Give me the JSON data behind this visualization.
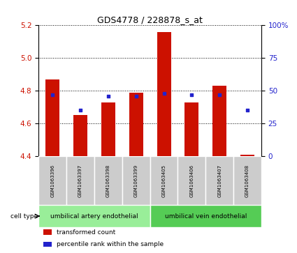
{
  "title": "GDS4778 / 228878_s_at",
  "samples": [
    "GSM1063396",
    "GSM1063397",
    "GSM1063398",
    "GSM1063399",
    "GSM1063405",
    "GSM1063406",
    "GSM1063407",
    "GSM1063408"
  ],
  "transformed_counts": [
    4.87,
    4.65,
    4.73,
    4.79,
    5.16,
    4.73,
    4.83,
    4.41
  ],
  "percentile_ranks": [
    47,
    35,
    46,
    46,
    48,
    47,
    47,
    35
  ],
  "ylim_left": [
    4.4,
    5.2
  ],
  "yticks_left": [
    4.4,
    4.6,
    4.8,
    5.0,
    5.2
  ],
  "yticks_right": [
    0,
    25,
    50,
    75,
    100
  ],
  "bar_color": "#cc1100",
  "dot_color": "#2222cc",
  "bar_bottom": 4.4,
  "groups": [
    {
      "label": "umbilical artery endothelial",
      "start": 0,
      "end": 4,
      "color": "#99ee99"
    },
    {
      "label": "umbilical vein endothelial",
      "start": 4,
      "end": 8,
      "color": "#55cc55"
    }
  ],
  "cell_type_label": "cell type",
  "legend_items": [
    {
      "label": "transformed count",
      "color": "#cc1100"
    },
    {
      "label": "percentile rank within the sample",
      "color": "#2222cc"
    }
  ],
  "bg_color": "#ffffff",
  "plot_bg": "#ffffff",
  "tick_label_color_left": "#cc1100",
  "tick_label_color_right": "#2222cc",
  "sample_box_color": "#cccccc",
  "bar_width": 0.5
}
